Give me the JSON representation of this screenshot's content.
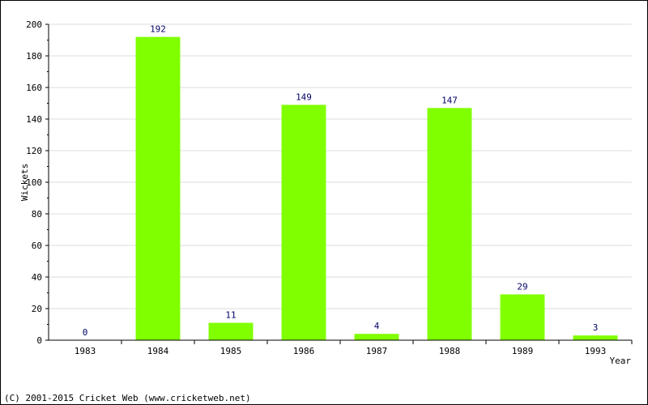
{
  "chart_data": {
    "type": "bar",
    "categories": [
      "1983",
      "1984",
      "1985",
      "1986",
      "1987",
      "1988",
      "1989",
      "1993"
    ],
    "values": [
      0,
      192,
      11,
      149,
      4,
      147,
      29,
      3
    ],
    "xlabel": "Year",
    "ylabel": "Wickets",
    "ylim": [
      0,
      200
    ],
    "yticks": [
      0,
      20,
      40,
      60,
      80,
      100,
      120,
      140,
      160,
      180,
      200
    ],
    "grid": true,
    "bar_color": "#80ff00"
  },
  "footer": "(C) 2001-2015 Cricket Web (www.cricketweb.net)"
}
